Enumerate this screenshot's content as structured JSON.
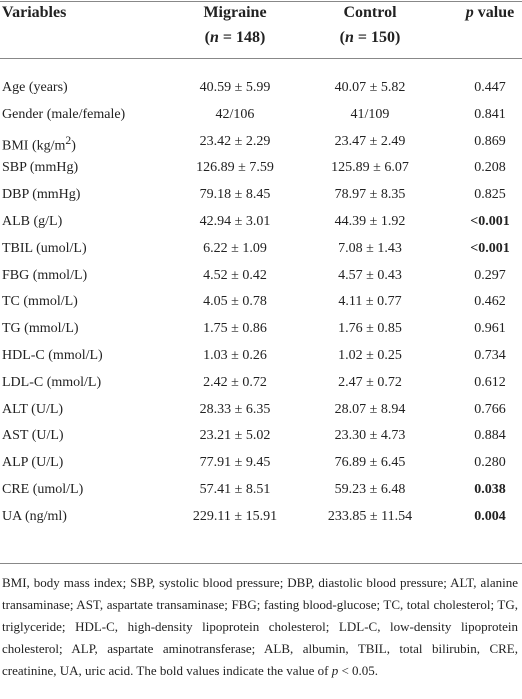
{
  "table": {
    "header": [
      {
        "line1": "Variables"
      },
      {
        "line1": "Migraine",
        "line2": [
          "(",
          "n",
          " = 148)"
        ]
      },
      {
        "line1": "Control",
        "line2": [
          "(",
          "n",
          " = 150)"
        ]
      },
      {
        "line1": [
          "p",
          " value"
        ]
      }
    ],
    "rows": [
      {
        "cells": [
          "Age (years)",
          "40.59 ± 5.99",
          "40.07 ± 5.82",
          "0.447"
        ],
        "bold": false
      },
      {
        "cells": [
          "Gender (male/female)",
          "42/106",
          "41/109",
          "0.841"
        ],
        "bold": false
      },
      {
        "cells": [
          [
            "BMI (kg/m",
            "2",
            ")"
          ],
          "23.42 ± 2.29",
          "23.47 ± 2.49",
          "0.869"
        ],
        "bold": false
      },
      {
        "cells": [
          "SBP (mmHg)",
          "126.89 ± 7.59",
          "125.89 ± 6.07",
          "0.208"
        ],
        "bold": false
      },
      {
        "cells": [
          "DBP (mmHg)",
          "79.18 ± 8.45",
          "78.97 ± 8.35",
          "0.825"
        ],
        "bold": false
      },
      {
        "cells": [
          "ALB (g/L)",
          "42.94 ± 3.01",
          "44.39 ± 1.92",
          "<0.001"
        ],
        "bold": true
      },
      {
        "cells": [
          "TBIL (umol/L)",
          "6.22 ± 1.09",
          "7.08 ± 1.43",
          "<0.001"
        ],
        "bold": true
      },
      {
        "cells": [
          "FBG (mmol/L)",
          "4.52 ± 0.42",
          "4.57 ± 0.43",
          "0.297"
        ],
        "bold": false
      },
      {
        "cells": [
          "TC (mmol/L)",
          "4.05 ± 0.78",
          "4.11 ± 0.77",
          "0.462"
        ],
        "bold": false
      },
      {
        "cells": [
          "TG (mmol/L)",
          "1.75 ± 0.86",
          "1.76 ± 0.85",
          "0.961"
        ],
        "bold": false
      },
      {
        "cells": [
          "HDL-C (mmol/L)",
          "1.03 ± 0.26",
          "1.02 ± 0.25",
          "0.734"
        ],
        "bold": false
      },
      {
        "cells": [
          "LDL-C (mmol/L)",
          "2.42 ± 0.72",
          "2.47 ± 0.72",
          "0.612"
        ],
        "bold": false
      },
      {
        "cells": [
          "ALT (U/L)",
          "28.33 ± 6.35",
          "28.07 ± 8.94",
          "0.766"
        ],
        "bold": false
      },
      {
        "cells": [
          "AST (U/L)",
          "23.21 ± 5.02",
          "23.30 ± 4.73",
          "0.884"
        ],
        "bold": false
      },
      {
        "cells": [
          "ALP (U/L)",
          "77.91 ± 9.45",
          "76.89 ± 6.45",
          "0.280"
        ],
        "bold": false
      },
      {
        "cells": [
          "CRE (umol/L)",
          "57.41 ± 8.51",
          "59.23 ± 6.48",
          "0.038"
        ],
        "bold": true
      },
      {
        "cells": [
          "UA (ng/ml)",
          "229.11 ± 15.91",
          "233.85 ± 11.54",
          "0.004"
        ],
        "bold": true
      }
    ],
    "footnote": [
      "BMI, body mass index; SBP, systolic blood pressure; DBP, diastolic blood pressure; ALT, alanine transaminase; AST, aspartate transaminase; FBG; fasting blood-glucose; TC, total cholesterol; TG, triglyceride; HDL-C, high-density lipoprotein cholesterol; LDL-C, low-density lipoprotein cholesterol; ALP, aspartate aminotransferase; ALB, albumin, TBIL, total bilirubin, CRE, creatinine, UA, uric acid. The bold values indicate the value of ",
      "p",
      " < 0.05."
    ]
  }
}
